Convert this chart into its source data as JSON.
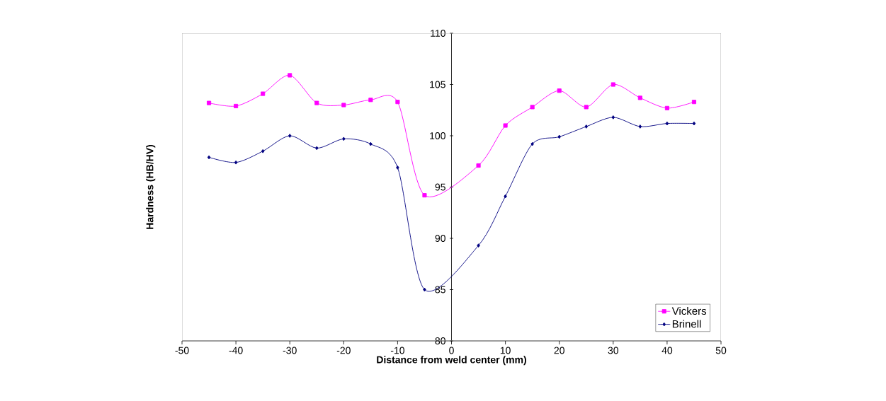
{
  "chart_data": {
    "type": "line",
    "xlabel": "Distance from weld center (mm)",
    "ylabel": "Hardness (HB/HV)",
    "x": [
      -45,
      -40,
      -35,
      -30,
      -25,
      -20,
      -15,
      -10,
      -5,
      5,
      10,
      15,
      20,
      25,
      30,
      35,
      40,
      45
    ],
    "series": [
      {
        "name": "Vickers",
        "color": "#ff00ff",
        "marker": "square",
        "values": [
          103.2,
          102.9,
          104.1,
          105.9,
          103.2,
          103.0,
          103.5,
          103.3,
          94.2,
          97.1,
          101.0,
          102.8,
          104.4,
          102.8,
          105.0,
          103.7,
          102.7,
          103.3
        ]
      },
      {
        "name": "Brinell",
        "color": "#000080",
        "marker": "diamond",
        "values": [
          97.9,
          97.4,
          98.5,
          100.0,
          98.8,
          99.7,
          99.2,
          96.9,
          85.0,
          89.3,
          94.1,
          99.2,
          99.9,
          100.9,
          101.8,
          100.9,
          101.2,
          101.2
        ]
      }
    ],
    "xlim": [
      -50,
      50
    ],
    "ylim": [
      80,
      110
    ],
    "xticks": [
      -50,
      -40,
      -30,
      -20,
      -10,
      0,
      10,
      20,
      30,
      40,
      50
    ],
    "yticks": [
      80,
      85,
      90,
      95,
      100,
      105,
      110
    ],
    "grid": false,
    "legend": "bottom right"
  }
}
